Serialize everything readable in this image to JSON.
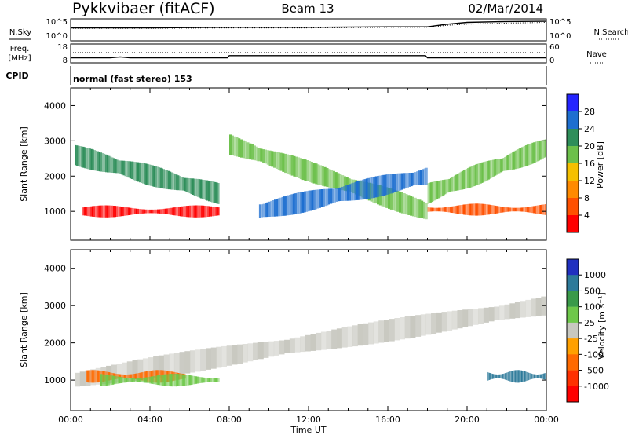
{
  "header": {
    "station": "Pykkvibaer (fitACF)",
    "beam": "Beam 13",
    "date": "02/Mar/2014"
  },
  "chart_data": [
    {
      "id": "noise-panel",
      "type": "line",
      "left_label": "N.Sky",
      "right_label": "N.Search",
      "left_ticks": [
        "10^5",
        "10^0"
      ],
      "right_ticks": [
        "10^5",
        "10^0"
      ],
      "x": [
        0,
        4,
        8,
        12,
        16,
        18,
        19,
        20,
        22,
        24
      ],
      "series": [
        {
          "name": "N.Sky",
          "values": [
            1000.0,
            1000.0,
            1500.0,
            1500.0,
            2000.0,
            2000.0,
            10000.0,
            30000.0,
            50000.0,
            60000.0
          ]
        },
        {
          "name": "N.Search",
          "values": [
            800.0,
            800.0,
            1000.0,
            1000.0,
            1500.0,
            1500.0,
            5000.0,
            10000.0,
            20000.0,
            30000.0
          ]
        }
      ],
      "ylim": [
        1,
        100000
      ],
      "log_scale": true
    },
    {
      "id": "freq-panel",
      "type": "line",
      "left_label": "Freq.",
      "left_unit": "[MHz]",
      "right_label": "Nave",
      "left_ticks": [
        "18",
        "8"
      ],
      "right_ticks": [
        "60",
        "0"
      ],
      "x": [
        0,
        2,
        2.5,
        3,
        7.9,
        8,
        17.9,
        18,
        24
      ],
      "series": [
        {
          "name": "Freq. [MHz]",
          "values": [
            10.2,
            10.2,
            10.8,
            10.2,
            10.2,
            11.6,
            11.6,
            10.2,
            10.2
          ]
        },
        {
          "name": "Nave",
          "values": [
            33,
            33,
            33,
            33,
            33,
            33,
            33,
            33,
            33
          ]
        }
      ],
      "ylim": [
        8,
        18
      ],
      "y2lim": [
        0,
        60
      ]
    },
    {
      "id": "cpid-panel",
      "type": "table",
      "label": "CPID",
      "text": "normal (fast stereo) 153"
    },
    {
      "id": "power-panel",
      "type": "heatmap",
      "ylabel": "Slant Range [km]",
      "yticks": [
        1000,
        2000,
        3000,
        4000
      ],
      "ylim": [
        180,
        4500
      ],
      "xlim": [
        0,
        24
      ],
      "colorbar": {
        "label": "Power [dB]",
        "ticks": [
          "4",
          "8",
          "12",
          "16",
          "20",
          "24",
          "28"
        ],
        "colors": [
          "#2424ff",
          "#1e6fd0",
          "#2e8e5a",
          "#6cc04a",
          "#f5c000",
          "#ff8a00",
          "#ff5000",
          "#ff0000"
        ]
      },
      "features": [
        {
          "label": "E-region echo",
          "t_start": 0.6,
          "t_end": 7.5,
          "r_center": 1000,
          "power_db": 28
        },
        {
          "label": "F-region band",
          "t_start": 0.2,
          "t_end": 7.5,
          "r_from": 2600,
          "r_to": 1500,
          "power_db": 10
        },
        {
          "label": "Return echo",
          "t_start": 8.0,
          "t_end": 18.0,
          "r_from": 2900,
          "r_to": 1000,
          "power_db": 14
        },
        {
          "label": "Broad F echo",
          "t_start": 9.5,
          "t_end": 18.0,
          "r_from": 1000,
          "r_to": 2000,
          "power_db": 6
        },
        {
          "label": "Evening echo",
          "t_start": 18.0,
          "t_end": 24.0,
          "r_center": 1050,
          "power_db": 24
        },
        {
          "label": "Evening F",
          "t_start": 18.0,
          "t_end": 24.0,
          "r_from": 1500,
          "r_to": 2800,
          "power_db": 12
        }
      ]
    },
    {
      "id": "velocity-panel",
      "type": "heatmap",
      "ylabel": "Slant Range [km]",
      "yticks": [
        1000,
        2000,
        3000,
        4000
      ],
      "ylim": [
        180,
        4500
      ],
      "xlim": [
        0,
        24
      ],
      "xticks": [
        "00:00",
        "04:00",
        "08:00",
        "12:00",
        "16:00",
        "20:00",
        "00:00"
      ],
      "xlabel": "Time UT",
      "colorbar": {
        "label": "Velocity [m s⁻¹]",
        "ticks": [
          "1000",
          "500",
          "100",
          "25",
          "-25",
          "-100",
          "-500",
          "-1000"
        ],
        "colors": [
          "#2030c0",
          "#2d7a9a",
          "#3a9a4a",
          "#6ec84a",
          "#c8c8c0",
          "#ffa000",
          "#ff6a00",
          "#ff3000",
          "#ff0000"
        ]
      },
      "features": [
        {
          "label": "Ground scatter",
          "t_start": 0.2,
          "t_end": 24.0,
          "r_from": 1000,
          "r_to": 3000,
          "velocity": 0
        },
        {
          "label": "Away flow",
          "t_start": 0.8,
          "t_end": 5.8,
          "r_center": 1100,
          "velocity": -300
        },
        {
          "label": "Toward flow",
          "t_start": 1.5,
          "t_end": 7.5,
          "r_center": 1000,
          "velocity": 80
        },
        {
          "label": "Evening toward",
          "t_start": 21.0,
          "t_end": 24.0,
          "r_center": 1100,
          "velocity": 120
        }
      ]
    }
  ]
}
